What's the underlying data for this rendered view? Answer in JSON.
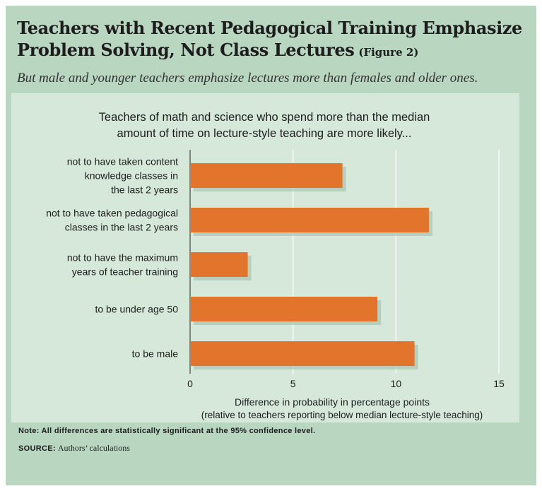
{
  "figure": {
    "title": "Teachers with Recent Pedagogical Training Emphasize Problem Solving, Not Class Lectures",
    "figure_tag": "(Figure 2)",
    "subtitle": "But male and younger teachers emphasize lectures more than females and older ones.",
    "note": "Note: All differences are statistically significant at the 95% confidence level.",
    "source_label": "SOURCE:",
    "source_text": "Authors’ calculations",
    "colors": {
      "background": "#b9d6c1",
      "panel": "#d5e8da",
      "bar": "#e2742c",
      "text": "#1d1d1d"
    }
  },
  "chart_data": {
    "type": "bar",
    "orientation": "horizontal",
    "title": "Teachers of math and science who spend more than the median amount of time on lecture-style teaching are more likely...",
    "title_lines": [
      "Teachers of math and science who spend more than the median",
      "amount of time on lecture-style teaching are more likely..."
    ],
    "categories": [
      "not to have taken content knowledge classes in the last 2 years",
      "not to have taken pedagogical classes in the last 2 years",
      "not to have the maximum years of teacher training",
      "to be under age 50",
      "to be male"
    ],
    "category_lines": [
      [
        "not to have taken content",
        "knowledge classes in",
        "the last 2 years"
      ],
      [
        "not to have taken pedagogical",
        "classes in the last 2 years"
      ],
      [
        "not to have the maximum",
        "years of teacher training"
      ],
      [
        "to be under age 50"
      ],
      [
        "to be male"
      ]
    ],
    "values": [
      7.4,
      11.6,
      2.8,
      9.1,
      10.9
    ],
    "xlabel": "Difference in probability in percentage points",
    "xlabel_sub": "(relative to teachers reporting below median lecture-style teaching)",
    "xlim": [
      0,
      15
    ],
    "xticks": [
      "0",
      "5",
      "10",
      "15"
    ],
    "grid": true
  }
}
